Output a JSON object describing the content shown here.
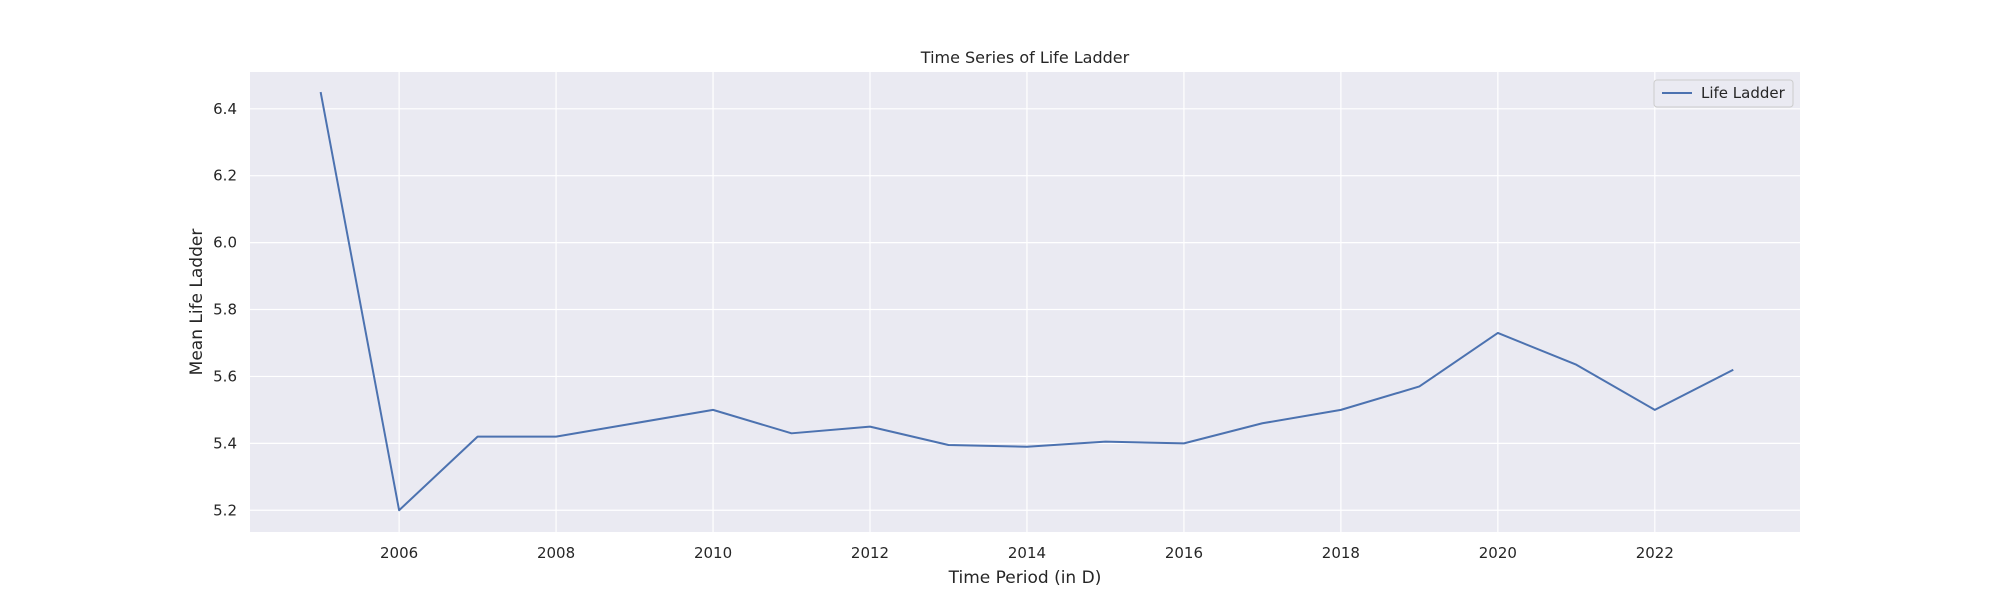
{
  "chart_data": {
    "type": "line",
    "title": "Time Series of Life Ladder",
    "xlabel": "Time Period (in D)",
    "ylabel": "Mean Life Ladder",
    "x": [
      2005,
      2006,
      2007,
      2008,
      2009,
      2010,
      2011,
      2012,
      2013,
      2014,
      2015,
      2016,
      2017,
      2018,
      2019,
      2020,
      2021,
      2022,
      2023
    ],
    "series": [
      {
        "name": "Life Ladder",
        "values": [
          6.45,
          5.2,
          5.42,
          5.42,
          5.46,
          5.5,
          5.43,
          5.45,
          5.395,
          5.39,
          5.405,
          5.4,
          5.46,
          5.5,
          5.57,
          5.73,
          5.635,
          5.5,
          5.62
        ],
        "color": "#4c72b0"
      }
    ],
    "xlim": [
      2004.1,
      2023.85
    ],
    "ylim": [
      5.135,
      6.51
    ],
    "xticks": [
      2006,
      2008,
      2010,
      2012,
      2014,
      2016,
      2018,
      2020,
      2022
    ],
    "yticks": [
      5.2,
      5.4,
      5.6,
      5.8,
      6.0,
      6.2,
      6.4
    ],
    "grid": true,
    "legend_position": "upper right",
    "background_color": "#eaeaf2",
    "grid_color": "#ffffff"
  }
}
